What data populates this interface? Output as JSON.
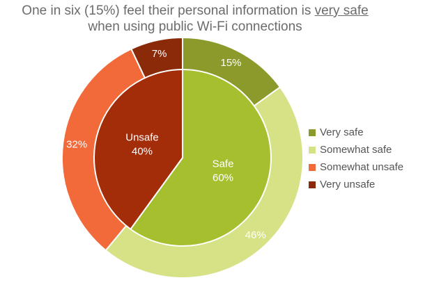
{
  "title": {
    "line1_prefix": "One in six (15%) feel their personal information is ",
    "line1_emphasis": "very safe",
    "line2": "when using public Wi-Fi connections"
  },
  "chart_data": {
    "type": "pie",
    "outer_ring": [
      {
        "name": "Very safe",
        "value": 15,
        "label": "15%",
        "color": "#8c9a2b"
      },
      {
        "name": "Somewhat safe",
        "value": 46,
        "label": "46%",
        "color": "#d7e186"
      },
      {
        "name": "Somewhat unsafe",
        "value": 32,
        "label": "32%",
        "color": "#f2693a"
      },
      {
        "name": "Very unsafe",
        "value": 7,
        "label": "7%",
        "color": "#8a2a08"
      }
    ],
    "inner_pie": [
      {
        "name": "Safe",
        "value": 60,
        "label": "60%",
        "color": "#a6bf2e"
      },
      {
        "name": "Unsafe",
        "value": 40,
        "label": "40%",
        "color": "#a32c09"
      }
    ],
    "legend": {
      "placement": "right",
      "items": [
        {
          "label": "Very safe",
          "color": "#8c9a2b"
        },
        {
          "label": "Somewhat safe",
          "color": "#d7e186"
        },
        {
          "label": "Somewhat unsafe",
          "color": "#f2693a"
        },
        {
          "label": "Very unsafe",
          "color": "#8a2a08"
        }
      ]
    }
  }
}
